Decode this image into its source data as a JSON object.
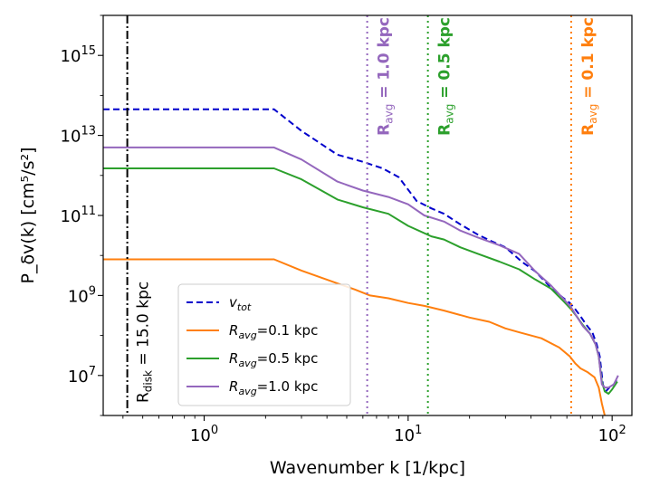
{
  "chart_data": {
    "type": "line",
    "xlabel": "Wavenumber k [1/kpc]",
    "ylabel": "P_δv(k) [cm⁵/s²]",
    "xscale": "log",
    "yscale": "log",
    "xlim": [
      0.32,
      125
    ],
    "ylim": [
      1000000.0,
      1e+16
    ],
    "x_ticks": [
      {
        "value": 1,
        "label": "10",
        "exp": "0"
      },
      {
        "value": 10,
        "label": "10",
        "exp": "1"
      },
      {
        "value": 100,
        "label": "10",
        "exp": "2"
      }
    ],
    "y_ticks": [
      {
        "value": 10000000.0,
        "label": "10",
        "exp": "7"
      },
      {
        "value": 1000000000.0,
        "label": "10",
        "exp": "9"
      },
      {
        "value": 100000000000.0,
        "label": "10",
        "exp": "11"
      },
      {
        "value": 10000000000000.0,
        "label": "10",
        "exp": "13"
      },
      {
        "value": 1000000000000000.0,
        "label": "10",
        "exp": "15"
      }
    ],
    "grid": false,
    "legend_position": "bottom-center",
    "series": [
      {
        "name": "v_tot",
        "legend_main": "v",
        "legend_sub": "tot",
        "legend_suffix": "",
        "color": "#0000cc",
        "dash": "dashed",
        "points": [
          [
            0.32,
            45000000000000.0
          ],
          [
            2.2,
            45000000000000.0
          ],
          [
            3.0,
            13000000000000.0
          ],
          [
            4.5,
            3300000000000.0
          ],
          [
            6.0,
            2200000000000.0
          ],
          [
            7.5,
            1500000000000.0
          ],
          [
            9.0,
            900000000000.0
          ],
          [
            11.0,
            230000000000.0
          ],
          [
            13.0,
            150000000000.0
          ],
          [
            15.0,
            110000000000.0
          ],
          [
            18.0,
            60000000000.0
          ],
          [
            22.0,
            33000000000.0
          ],
          [
            26.0,
            22000000000.0
          ],
          [
            30.0,
            16000000000.0
          ],
          [
            36.0,
            7000000000.0
          ],
          [
            42.0,
            4000000000.0
          ],
          [
            50.0,
            1600000000.0
          ],
          [
            57.0,
            900000000.0
          ],
          [
            62.0,
            650000000.0
          ],
          [
            65.0,
            500000000.0
          ],
          [
            70.0,
            300000000.0
          ],
          [
            75.0,
            180000000.0
          ],
          [
            80.0,
            120000000.0
          ],
          [
            84.0,
            60000000.0
          ],
          [
            87.0,
            30000000.0
          ],
          [
            90.0,
            6000000.0
          ],
          [
            93.0,
            4000000.0
          ],
          [
            97.0,
            5000000.0
          ],
          [
            102.0,
            6000000.0
          ],
          [
            107.0,
            9000000.0
          ]
        ]
      },
      {
        "name": "R_avg=0.1 kpc",
        "legend_main": "R",
        "legend_sub": "avg",
        "legend_suffix": "=0.1 kpc",
        "color": "#ff7f0e",
        "dash": "solid",
        "points": [
          [
            0.32,
            8000000000.0
          ],
          [
            2.2,
            8000000000.0
          ],
          [
            3.0,
            4200000000.0
          ],
          [
            4.5,
            2000000000.0
          ],
          [
            5.5,
            1400000000.0
          ],
          [
            6.5,
            1000000000.0
          ],
          [
            8.0,
            850000000.0
          ],
          [
            10.0,
            650000000.0
          ],
          [
            12.0,
            550000000.0
          ],
          [
            15.0,
            420000000.0
          ],
          [
            20.0,
            280000000.0
          ],
          [
            25.0,
            220000000.0
          ],
          [
            30.0,
            150000000.0
          ],
          [
            35.0,
            120000000.0
          ],
          [
            45.0,
            85000000.0
          ],
          [
            55.0,
            50000000.0
          ],
          [
            62.0,
            30000000.0
          ],
          [
            66.0,
            20000000.0
          ],
          [
            70.0,
            15000000.0
          ],
          [
            76.0,
            12000000.0
          ],
          [
            82.0,
            9000000.0
          ],
          [
            86.0,
            5000000.0
          ],
          [
            89.0,
            2000000.0
          ],
          [
            92.0,
            1000000.0
          ]
        ]
      },
      {
        "name": "R_avg=0.5 kpc",
        "legend_main": "R",
        "legend_sub": "avg",
        "legend_suffix": "=0.5 kpc",
        "color": "#2ca02c",
        "dash": "solid",
        "points": [
          [
            0.32,
            1500000000000.0
          ],
          [
            2.2,
            1500000000000.0
          ],
          [
            3.0,
            800000000000.0
          ],
          [
            4.5,
            250000000000.0
          ],
          [
            6.0,
            160000000000.0
          ],
          [
            8.0,
            110000000000.0
          ],
          [
            10.0,
            55000000000.0
          ],
          [
            13.0,
            30000000000.0
          ],
          [
            15.0,
            25000000000.0
          ],
          [
            18.0,
            16000000000.0
          ],
          [
            22.0,
            11000000000.0
          ],
          [
            28.0,
            7000000000.0
          ],
          [
            35.0,
            4500000000.0
          ],
          [
            42.0,
            2500000000.0
          ],
          [
            50.0,
            1500000000.0
          ],
          [
            58.0,
            700000000.0
          ],
          [
            63.0,
            450000000.0
          ],
          [
            67.0,
            300000000.0
          ],
          [
            72.0,
            180000000.0
          ],
          [
            78.0,
            110000000.0
          ],
          [
            83.0,
            60000000.0
          ],
          [
            86.0,
            30000000.0
          ],
          [
            89.0,
            7000000.0
          ],
          [
            92.0,
            4000000.0
          ],
          [
            96.0,
            3500000.0
          ],
          [
            100.0,
            4500000.0
          ],
          [
            106.0,
            7000000.0
          ]
        ]
      },
      {
        "name": "R_avg=1.0 kpc",
        "legend_main": "R",
        "legend_sub": "avg",
        "legend_suffix": "=1.0 kpc",
        "color": "#9467bd",
        "dash": "solid",
        "points": [
          [
            0.32,
            5000000000000.0
          ],
          [
            2.2,
            5000000000000.0
          ],
          [
            3.0,
            2500000000000.0
          ],
          [
            4.5,
            700000000000.0
          ],
          [
            6.0,
            420000000000.0
          ],
          [
            8.0,
            290000000000.0
          ],
          [
            10.0,
            190000000000.0
          ],
          [
            12.0,
            100000000000.0
          ],
          [
            15.0,
            70000000000.0
          ],
          [
            18.0,
            42000000000.0
          ],
          [
            22.0,
            28000000000.0
          ],
          [
            28.0,
            18000000000.0
          ],
          [
            35.0,
            11000000000.0
          ],
          [
            42.0,
            4000000000.0
          ],
          [
            50.0,
            1800000000.0
          ],
          [
            58.0,
            800000000.0
          ],
          [
            63.0,
            500000000.0
          ],
          [
            67.0,
            300000000.0
          ],
          [
            72.0,
            170000000.0
          ],
          [
            78.0,
            110000000.0
          ],
          [
            83.0,
            60000000.0
          ],
          [
            86.0,
            30000000.0
          ],
          [
            89.0,
            6000000.0
          ],
          [
            92.0,
            5000000.0
          ],
          [
            96.0,
            5000000.0
          ],
          [
            102.0,
            6000000.0
          ],
          [
            107.0,
            10000000.0
          ]
        ]
      }
    ],
    "vlines": [
      {
        "x": 0.42,
        "color": "#000000",
        "style": "dashdot",
        "main": "R",
        "sub": "disk",
        "suffix": " = 15.0 kpc",
        "bold": false
      },
      {
        "x": 6.3,
        "color": "#9467bd",
        "style": "dotted",
        "main": "R",
        "sub": "avg",
        "suffix": " = 1.0 kpc",
        "bold": true
      },
      {
        "x": 12.5,
        "color": "#2ca02c",
        "style": "dotted",
        "main": "R",
        "sub": "avg",
        "suffix": " = 0.5 kpc",
        "bold": true
      },
      {
        "x": 63.0,
        "color": "#ff7f0e",
        "style": "dotted",
        "main": "R",
        "sub": "avg",
        "suffix": " = 0.1 kpc",
        "bold": true
      }
    ]
  }
}
